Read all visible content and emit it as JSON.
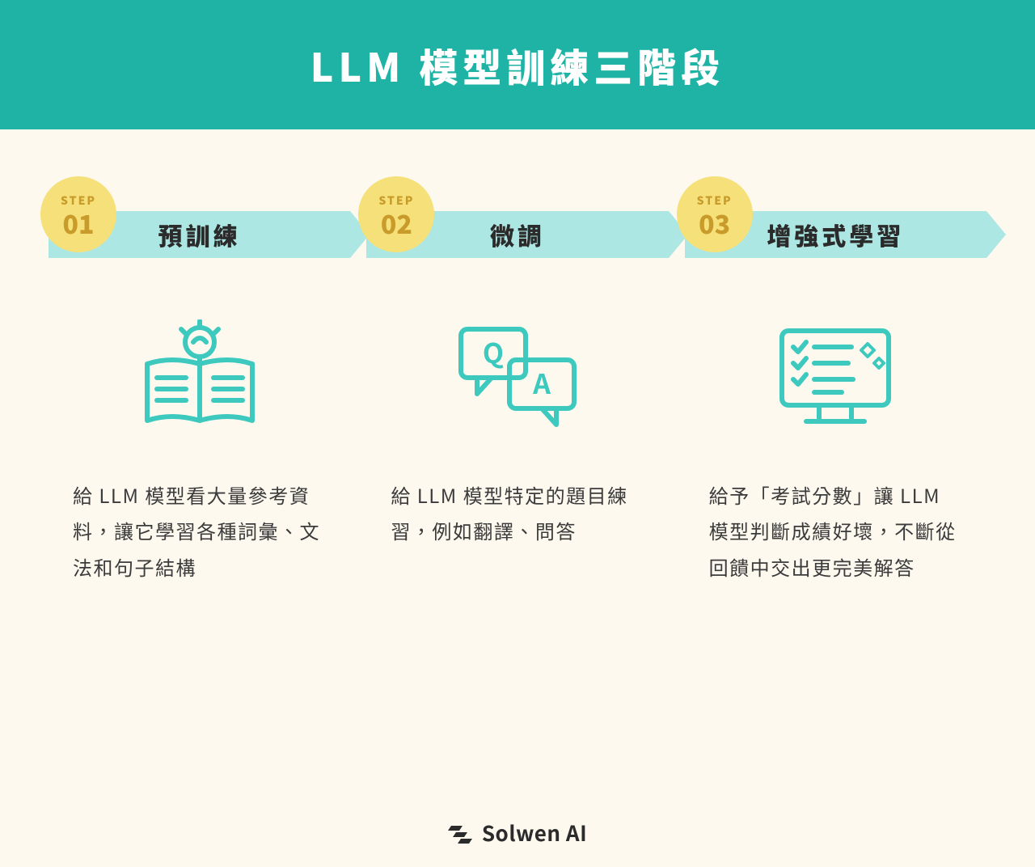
{
  "colors": {
    "page_bg": "#fdf9ef",
    "header_bg": "#1fb3a6",
    "header_text": "#ffffff",
    "badge_bg": "#f5e07a",
    "badge_text": "#c99b2a",
    "bar_bg": "#ace7e3",
    "bar_text": "#2b2b2b",
    "icon_stroke": "#3dc9be",
    "desc_text": "#3b3b3b",
    "footer_text": "#2b2b2b"
  },
  "header": {
    "title": "LLM 模型訓練三階段"
  },
  "step_label": "STEP",
  "steps": [
    {
      "num": "01",
      "title": "預訓練",
      "icon": "book-idea",
      "desc": "給 LLM 模型看大量參考資料，讓它學習各種詞彙、文法和句子結構"
    },
    {
      "num": "02",
      "title": "微調",
      "icon": "qa-bubbles",
      "desc": "給 LLM 模型特定的題目練習，例如翻譯、問答"
    },
    {
      "num": "03",
      "title": "增強式學習",
      "icon": "checklist-screen",
      "desc": "給予「考試分數」讓 LLM 模型判斷成績好壞，不斷從回饋中交出更完美解答"
    }
  ],
  "footer": {
    "brand": "Solwen AI"
  }
}
